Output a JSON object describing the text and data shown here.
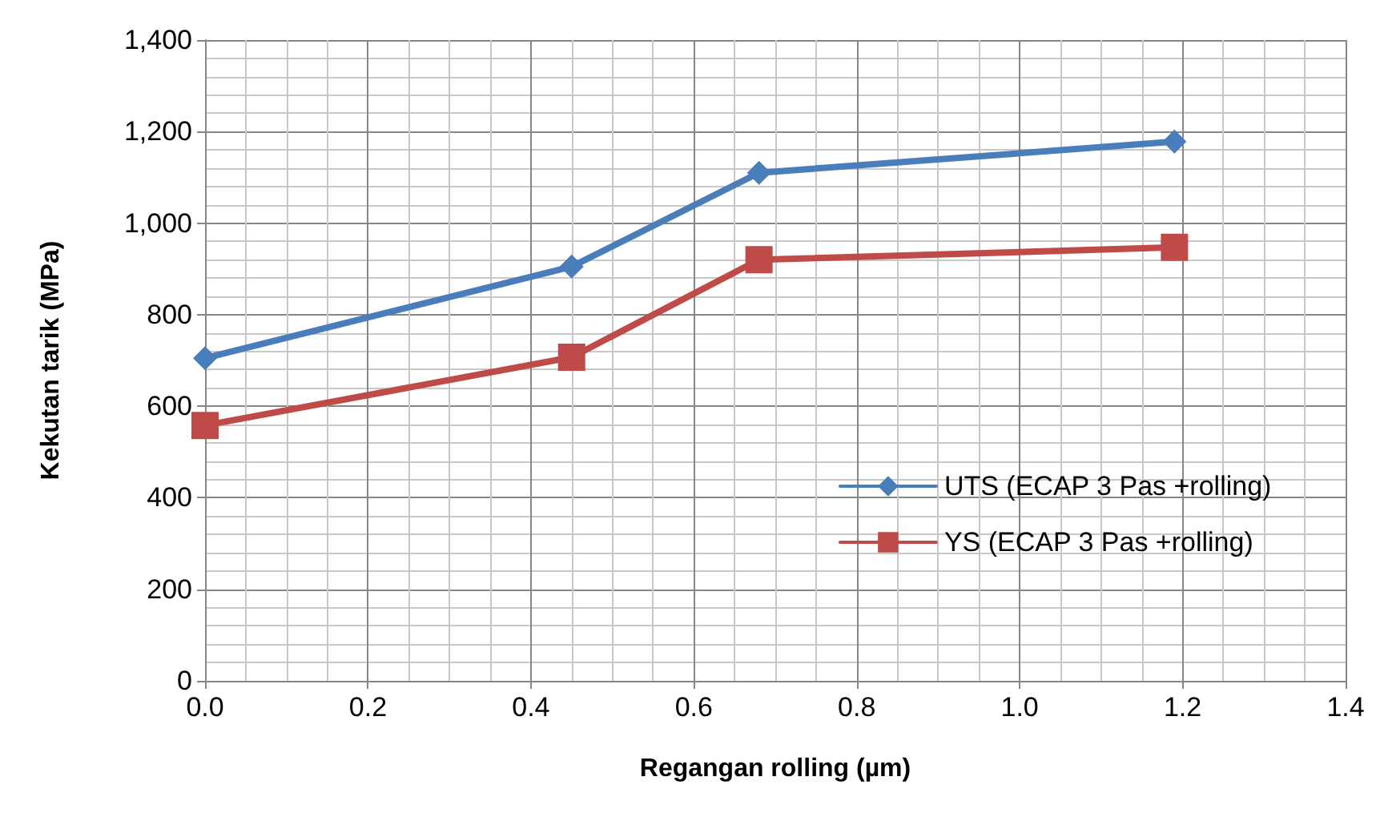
{
  "chart_data": {
    "type": "line",
    "xlabel": "Regangan rolling (µm)",
    "ylabel": "Kekutan tarik (MPa)",
    "series": [
      {
        "name": "UTS (ECAP 3 Pas +rolling)",
        "color": "#4a7ebb",
        "marker": "diamond",
        "x": [
          0,
          0.45,
          0.68,
          1.19
        ],
        "values": [
          705,
          905,
          1110,
          1178
        ]
      },
      {
        "name": "YS (ECAP 3 Pas +rolling)",
        "color": "#be4b48",
        "marker": "square",
        "x": [
          0,
          0.45,
          0.68,
          1.19
        ],
        "values": [
          558,
          707,
          920,
          947
        ]
      }
    ],
    "xlim": [
      0,
      1.4
    ],
    "xticks": [
      {
        "value": 0,
        "label": "0.0"
      },
      {
        "value": 0.2,
        "label": "0.2"
      },
      {
        "value": 0.4,
        "label": "0.4"
      },
      {
        "value": 0.6,
        "label": "0.6"
      },
      {
        "value": 0.8,
        "label": "0.8"
      },
      {
        "value": 1,
        "label": "1.0"
      },
      {
        "value": 1.2,
        "label": "1.2"
      },
      {
        "value": 1.4,
        "label": "1.4"
      }
    ],
    "ylim": [
      0,
      1400
    ],
    "yticks": [
      0,
      200,
      400,
      600,
      800,
      {
        "value": 1000,
        "label": "1,000"
      },
      {
        "value": 1200,
        "label": "1,200"
      },
      {
        "value": 1400,
        "label": "1,400"
      }
    ],
    "grid": true,
    "legend": "right",
    "line_style": "solid"
  }
}
